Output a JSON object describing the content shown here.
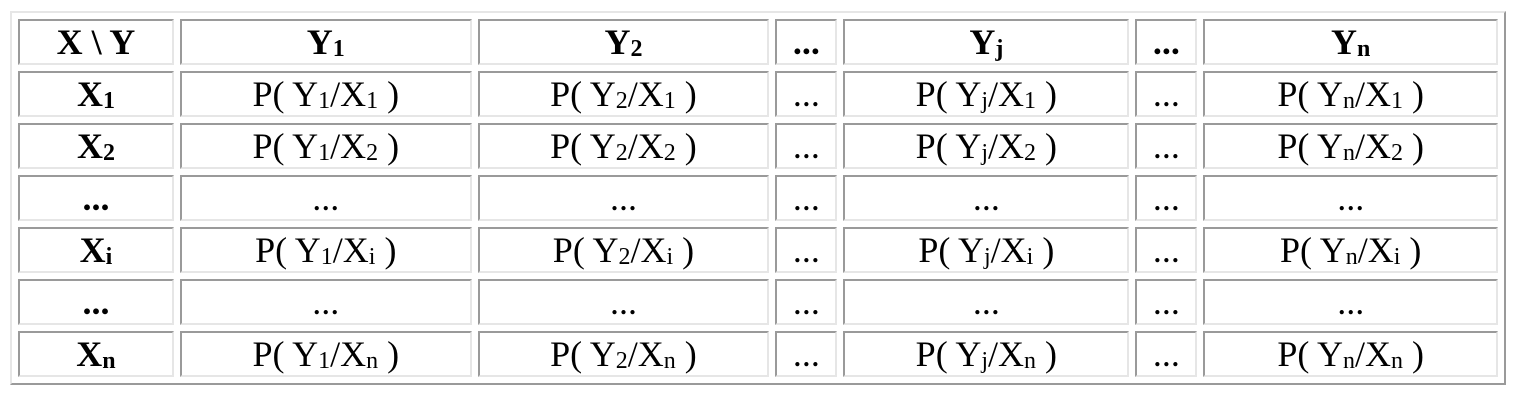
{
  "table": {
    "header": [
      {
        "main": "X \\ Y",
        "sub": ""
      },
      {
        "main": "Y",
        "sub": "1"
      },
      {
        "main": "Y",
        "sub": "2"
      },
      {
        "main": "...",
        "sub": ""
      },
      {
        "main": "Y",
        "sub": "j"
      },
      {
        "main": "...",
        "sub": ""
      },
      {
        "main": "Y",
        "sub": "n"
      }
    ],
    "rows": [
      {
        "label": {
          "main": "X",
          "sub": "1"
        },
        "cells": [
          {
            "a": "P( Y",
            "as": "1",
            "b": "/X",
            "bs": "1",
            "c": " )"
          },
          {
            "a": "P( Y",
            "as": "2",
            "b": "/X",
            "bs": "1",
            "c": " )"
          },
          {
            "a": "...",
            "as": "",
            "b": "",
            "bs": "",
            "c": ""
          },
          {
            "a": "P( Y",
            "as": "j",
            "b": "/X",
            "bs": "1",
            "c": " )"
          },
          {
            "a": "...",
            "as": "",
            "b": "",
            "bs": "",
            "c": ""
          },
          {
            "a": "P( Y",
            "as": "n",
            "b": "/X",
            "bs": "1",
            "c": " )"
          }
        ]
      },
      {
        "label": {
          "main": "X",
          "sub": "2"
        },
        "cells": [
          {
            "a": "P( Y",
            "as": "1",
            "b": "/X",
            "bs": "2",
            "c": " )"
          },
          {
            "a": "P( Y",
            "as": "2",
            "b": "/X",
            "bs": "2",
            "c": " )"
          },
          {
            "a": "...",
            "as": "",
            "b": "",
            "bs": "",
            "c": ""
          },
          {
            "a": "P( Y",
            "as": "j",
            "b": "/X",
            "bs": "2",
            "c": " )"
          },
          {
            "a": "...",
            "as": "",
            "b": "",
            "bs": "",
            "c": ""
          },
          {
            "a": "P( Y",
            "as": "n",
            "b": "/X",
            "bs": "2",
            "c": " )"
          }
        ]
      },
      {
        "label": {
          "main": "...",
          "sub": ""
        },
        "cells": [
          {
            "a": "...",
            "as": "",
            "b": "",
            "bs": "",
            "c": ""
          },
          {
            "a": "...",
            "as": "",
            "b": "",
            "bs": "",
            "c": ""
          },
          {
            "a": "...",
            "as": "",
            "b": "",
            "bs": "",
            "c": ""
          },
          {
            "a": "...",
            "as": "",
            "b": "",
            "bs": "",
            "c": ""
          },
          {
            "a": "...",
            "as": "",
            "b": "",
            "bs": "",
            "c": ""
          },
          {
            "a": "...",
            "as": "",
            "b": "",
            "bs": "",
            "c": ""
          }
        ]
      },
      {
        "label": {
          "main": "X",
          "sub": "i"
        },
        "cells": [
          {
            "a": "P( Y",
            "as": "1",
            "b": "/X",
            "bs": "i",
            "c": " )"
          },
          {
            "a": "P( Y",
            "as": "2",
            "b": "/X",
            "bs": "i",
            "c": " )"
          },
          {
            "a": "...",
            "as": "",
            "b": "",
            "bs": "",
            "c": ""
          },
          {
            "a": "P( Y",
            "as": "j",
            "b": "/X",
            "bs": "i",
            "c": " )"
          },
          {
            "a": "...",
            "as": "",
            "b": "",
            "bs": "",
            "c": ""
          },
          {
            "a": "P( Y",
            "as": "n",
            "b": "/X",
            "bs": "i",
            "c": " )"
          }
        ]
      },
      {
        "label": {
          "main": "...",
          "sub": ""
        },
        "cells": [
          {
            "a": "...",
            "as": "",
            "b": "",
            "bs": "",
            "c": ""
          },
          {
            "a": "...",
            "as": "",
            "b": "",
            "bs": "",
            "c": ""
          },
          {
            "a": "...",
            "as": "",
            "b": "",
            "bs": "",
            "c": ""
          },
          {
            "a": "...",
            "as": "",
            "b": "",
            "bs": "",
            "c": ""
          },
          {
            "a": "...",
            "as": "",
            "b": "",
            "bs": "",
            "c": ""
          },
          {
            "a": "...",
            "as": "",
            "b": "",
            "bs": "",
            "c": ""
          }
        ]
      },
      {
        "label": {
          "main": "X",
          "sub": "n"
        },
        "cells": [
          {
            "a": "P( Y",
            "as": "1",
            "b": "/X",
            "bs": "n",
            "c": " )"
          },
          {
            "a": "P( Y",
            "as": "2",
            "b": "/X",
            "bs": "n",
            "c": " )"
          },
          {
            "a": "...",
            "as": "",
            "b": "",
            "bs": "",
            "c": ""
          },
          {
            "a": "P( Y",
            "as": "j",
            "b": "/X",
            "bs": "n",
            "c": " )"
          },
          {
            "a": "...",
            "as": "",
            "b": "",
            "bs": "",
            "c": ""
          },
          {
            "a": "P( Y",
            "as": "n",
            "b": "/X",
            "bs": "n",
            "c": " )"
          }
        ]
      }
    ]
  }
}
